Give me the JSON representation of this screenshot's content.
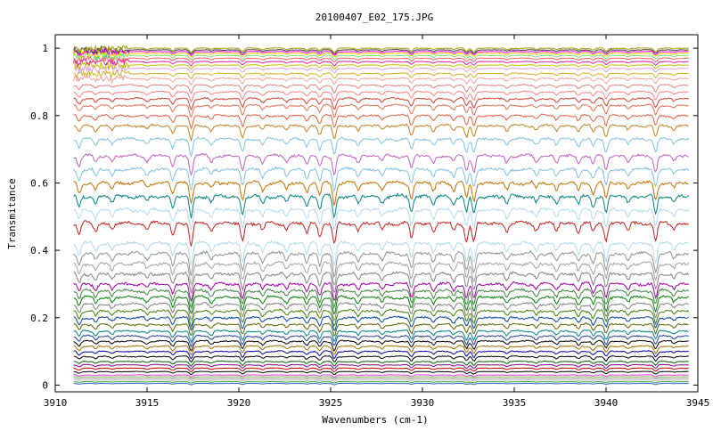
{
  "chart_data": {
    "type": "line",
    "title": "20100407_E02_175.JPG",
    "xlabel": "Wavenumbers (cm-1)",
    "ylabel": "Transmitance",
    "xlim": [
      3910,
      3945
    ],
    "ylim": [
      -0.02,
      1.04
    ],
    "xticks": [
      3910,
      3915,
      3920,
      3925,
      3930,
      3935,
      3940,
      3945
    ],
    "yticks": [
      0,
      0.2,
      0.4,
      0.6,
      0.8,
      1
    ],
    "ytick_labels": [
      "0",
      "0.2",
      "0.4",
      "0.6",
      "0.8",
      "1"
    ],
    "grid": false,
    "legend": false,
    "absorption_lines": [
      {
        "x": 3911.3,
        "depth": 0.5
      },
      {
        "x": 3912.2,
        "depth": 0.35
      },
      {
        "x": 3913.1,
        "depth": 0.3
      },
      {
        "x": 3915.0,
        "depth": 0.25
      },
      {
        "x": 3916.4,
        "depth": 0.55
      },
      {
        "x": 3917.4,
        "depth": 1.0
      },
      {
        "x": 3918.5,
        "depth": 0.3
      },
      {
        "x": 3920.2,
        "depth": 0.8
      },
      {
        "x": 3921.3,
        "depth": 0.35
      },
      {
        "x": 3922.6,
        "depth": 0.3
      },
      {
        "x": 3923.7,
        "depth": 0.45
      },
      {
        "x": 3924.4,
        "depth": 0.6
      },
      {
        "x": 3925.2,
        "depth": 1.0
      },
      {
        "x": 3926.5,
        "depth": 0.35
      },
      {
        "x": 3927.8,
        "depth": 0.3
      },
      {
        "x": 3929.4,
        "depth": 0.7
      },
      {
        "x": 3930.6,
        "depth": 0.4
      },
      {
        "x": 3931.7,
        "depth": 0.35
      },
      {
        "x": 3932.4,
        "depth": 0.75
      },
      {
        "x": 3932.8,
        "depth": 0.85
      },
      {
        "x": 3934.6,
        "depth": 0.35
      },
      {
        "x": 3936.2,
        "depth": 0.3
      },
      {
        "x": 3937.3,
        "depth": 0.35
      },
      {
        "x": 3938.5,
        "depth": 0.4
      },
      {
        "x": 3939.3,
        "depth": 0.45
      },
      {
        "x": 3940.0,
        "depth": 0.75
      },
      {
        "x": 3941.2,
        "depth": 0.3
      },
      {
        "x": 3942.7,
        "depth": 0.8
      },
      {
        "x": 3943.7,
        "depth": 0.25
      }
    ],
    "series": [
      {
        "baseline": 0.005,
        "color": "#3060c0"
      },
      {
        "baseline": 0.01,
        "color": "#40a040"
      },
      {
        "baseline": 0.015,
        "color": "#c0c0c0"
      },
      {
        "baseline": 0.02,
        "color": "#a0a0a0"
      },
      {
        "baseline": 0.025,
        "color": "#90c060"
      },
      {
        "baseline": 0.03,
        "color": "#e040e0"
      },
      {
        "baseline": 0.04,
        "color": "#000000"
      },
      {
        "baseline": 0.05,
        "color": "#c00000"
      },
      {
        "baseline": 0.06,
        "color": "#8000a0"
      },
      {
        "baseline": 0.07,
        "color": "#006000"
      },
      {
        "baseline": 0.085,
        "color": "#000000"
      },
      {
        "baseline": 0.1,
        "color": "#0000a0"
      },
      {
        "baseline": 0.115,
        "color": "#a07000"
      },
      {
        "baseline": 0.13,
        "color": "#000000"
      },
      {
        "baseline": 0.145,
        "color": "#2040a0"
      },
      {
        "baseline": 0.16,
        "color": "#008080"
      },
      {
        "baseline": 0.18,
        "color": "#606000"
      },
      {
        "baseline": 0.2,
        "color": "#0040a0"
      },
      {
        "baseline": 0.22,
        "color": "#408000"
      },
      {
        "baseline": 0.24,
        "color": "#808080"
      },
      {
        "baseline": 0.26,
        "color": "#008000"
      },
      {
        "baseline": 0.28,
        "color": "#408040"
      },
      {
        "baseline": 0.3,
        "color": "#a000a0"
      },
      {
        "baseline": 0.33,
        "color": "#808080"
      },
      {
        "baseline": 0.36,
        "color": "#a0a0a0"
      },
      {
        "baseline": 0.39,
        "color": "#909090"
      },
      {
        "baseline": 0.42,
        "color": "#b0d8e8"
      },
      {
        "baseline": 0.48,
        "color": "#c02020"
      },
      {
        "baseline": 0.52,
        "color": "#b0d8f0"
      },
      {
        "baseline": 0.56,
        "color": "#008080"
      },
      {
        "baseline": 0.6,
        "color": "#c07000"
      },
      {
        "baseline": 0.64,
        "color": "#80c0e0"
      },
      {
        "baseline": 0.68,
        "color": "#c060c0"
      },
      {
        "baseline": 0.73,
        "color": "#80c0e0"
      },
      {
        "baseline": 0.77,
        "color": "#c08020"
      },
      {
        "baseline": 0.8,
        "color": "#e06040"
      },
      {
        "baseline": 0.83,
        "color": "#e07050"
      },
      {
        "baseline": 0.85,
        "color": "#d04030"
      },
      {
        "baseline": 0.87,
        "color": "#ff8080"
      },
      {
        "baseline": 0.89,
        "color": "#e08080"
      },
      {
        "baseline": 0.91,
        "color": "#f0a0a0"
      },
      {
        "baseline": 0.925,
        "color": "#d0b020"
      },
      {
        "baseline": 0.94,
        "color": "#e0a0e0"
      },
      {
        "baseline": 0.95,
        "color": "#c0c000"
      },
      {
        "baseline": 0.96,
        "color": "#e020a0"
      },
      {
        "baseline": 0.97,
        "color": "#ff6060"
      },
      {
        "baseline": 0.978,
        "color": "#80e080"
      },
      {
        "baseline": 0.985,
        "color": "#ffd000"
      },
      {
        "baseline": 0.99,
        "color": "#ff00ff"
      },
      {
        "baseline": 0.995,
        "color": "#404040"
      },
      {
        "baseline": 1.0,
        "color": "#a0a000"
      }
    ]
  }
}
